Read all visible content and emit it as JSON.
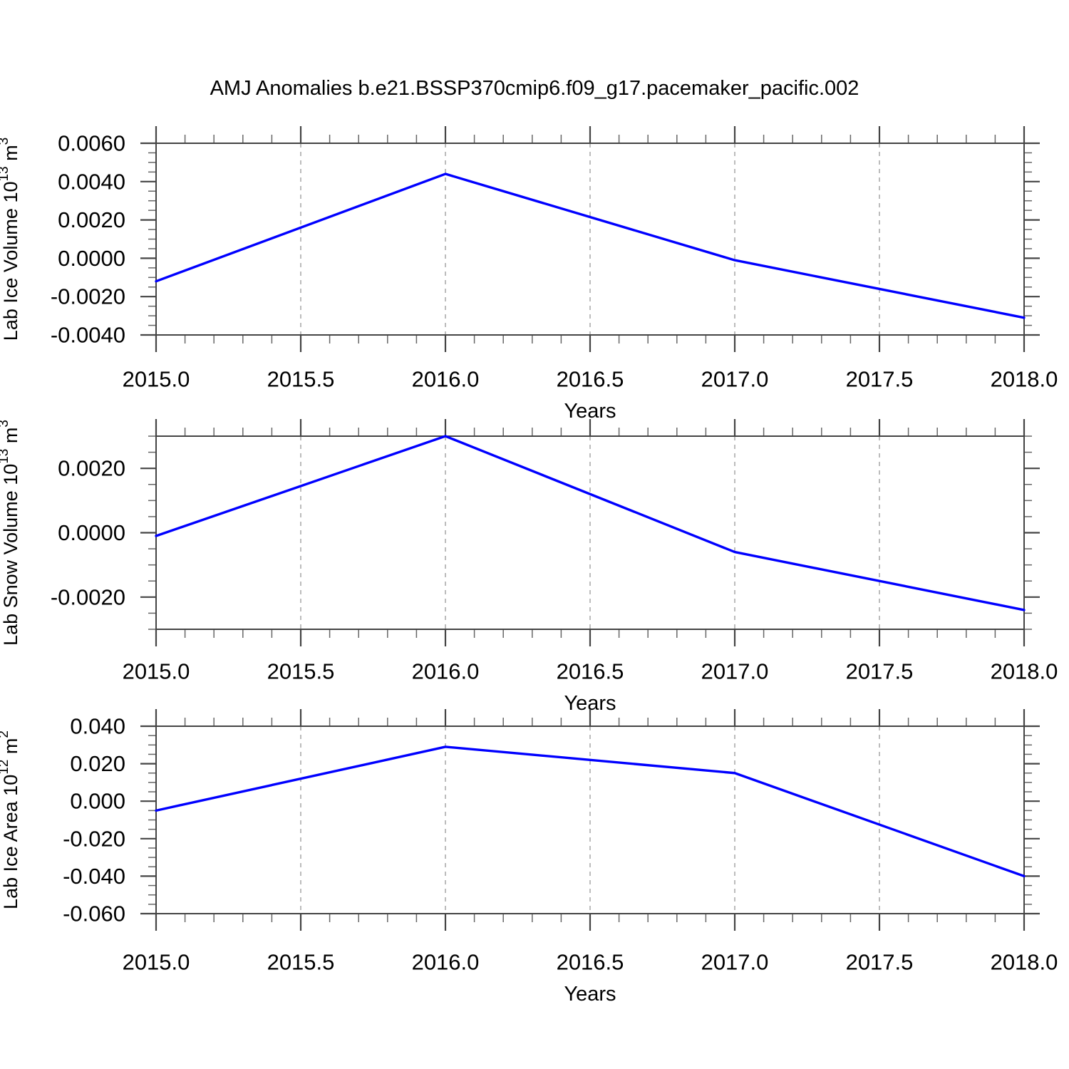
{
  "title": "AMJ Anomalies b.e21.BSSP370cmip6.f09_g17.pacemaker_pacific.002",
  "line_color": "#0000ff",
  "chart_data": [
    {
      "type": "line",
      "panel": "lab-ice-volume",
      "ylabel": "Lab Ice Volume 10^13 m^3",
      "ylabel_parts": [
        {
          "t": "Lab Ice Volume 10"
        },
        {
          "t": "13",
          "sup": true
        },
        {
          "t": " m"
        },
        {
          "t": "3",
          "sup": true
        }
      ],
      "xlabel": "Years",
      "x": [
        2015.0,
        2016.0,
        2017.0,
        2018.0
      ],
      "values": [
        -0.0012,
        0.0044,
        -0.0001,
        -0.0031
      ],
      "xlim": [
        2015.0,
        2018.0
      ],
      "ylim": [
        -0.004,
        0.006
      ],
      "xtick_step": 0.5,
      "xminor_step": 0.1,
      "ytick_step": 0.002,
      "yminor_step": 0.0005,
      "xtick_labels": [
        "2015.0",
        "2015.5",
        "2016.0",
        "2016.5",
        "2017.0",
        "2017.5",
        "2018.0"
      ],
      "ytick_labels": [
        "0.0060",
        "0.0040",
        "0.0020",
        "0.0000",
        "-0.0020",
        "-0.0040"
      ],
      "grid": "vertical-dashed",
      "legend": "none",
      "line_color": "#0000ff"
    },
    {
      "type": "line",
      "panel": "lab-snow-volume",
      "ylabel": "Lab Snow Volume 10^13 m^3",
      "ylabel_parts": [
        {
          "t": "Lab Snow Volume 10"
        },
        {
          "t": "13",
          "sup": true
        },
        {
          "t": " m"
        },
        {
          "t": "3",
          "sup": true
        }
      ],
      "xlabel": "Years",
      "x": [
        2015.0,
        2016.0,
        2017.0,
        2018.0
      ],
      "values": [
        -0.0001,
        0.003,
        -0.0006,
        -0.0024
      ],
      "xlim": [
        2015.0,
        2018.0
      ],
      "ylim": [
        -0.003,
        0.003
      ],
      "xtick_step": 0.5,
      "xminor_step": 0.1,
      "ytick_step": 0.002,
      "yminor_step": 0.0005,
      "xtick_labels": [
        "2015.0",
        "2015.5",
        "2016.0",
        "2016.5",
        "2017.0",
        "2017.5",
        "2018.0"
      ],
      "ytick_labels": [
        "0.0020",
        "0.0000",
        "-0.0020"
      ],
      "grid": "vertical-dashed",
      "legend": "none",
      "line_color": "#0000ff"
    },
    {
      "type": "line",
      "panel": "lab-ice-area",
      "ylabel": "Lab Ice Area 10^12 m^2",
      "ylabel_parts": [
        {
          "t": "Lab Ice Area 10"
        },
        {
          "t": "12",
          "sup": true
        },
        {
          "t": " m"
        },
        {
          "t": "2",
          "sup": true
        }
      ],
      "xlabel": "Years",
      "x": [
        2015.0,
        2016.0,
        2017.0,
        2018.0
      ],
      "values": [
        -0.005,
        0.029,
        0.015,
        -0.04
      ],
      "xlim": [
        2015.0,
        2018.0
      ],
      "ylim": [
        -0.06,
        0.04
      ],
      "xtick_step": 0.5,
      "xminor_step": 0.1,
      "ytick_step": 0.02,
      "yminor_step": 0.005,
      "xtick_labels": [
        "2015.0",
        "2015.5",
        "2016.0",
        "2016.5",
        "2017.0",
        "2017.5",
        "2018.0"
      ],
      "ytick_labels": [
        "0.040",
        "0.020",
        "0.000",
        "-0.020",
        "-0.040",
        "-0.060"
      ],
      "grid": "vertical-dashed",
      "legend": "none",
      "line_color": "#0000ff"
    }
  ]
}
